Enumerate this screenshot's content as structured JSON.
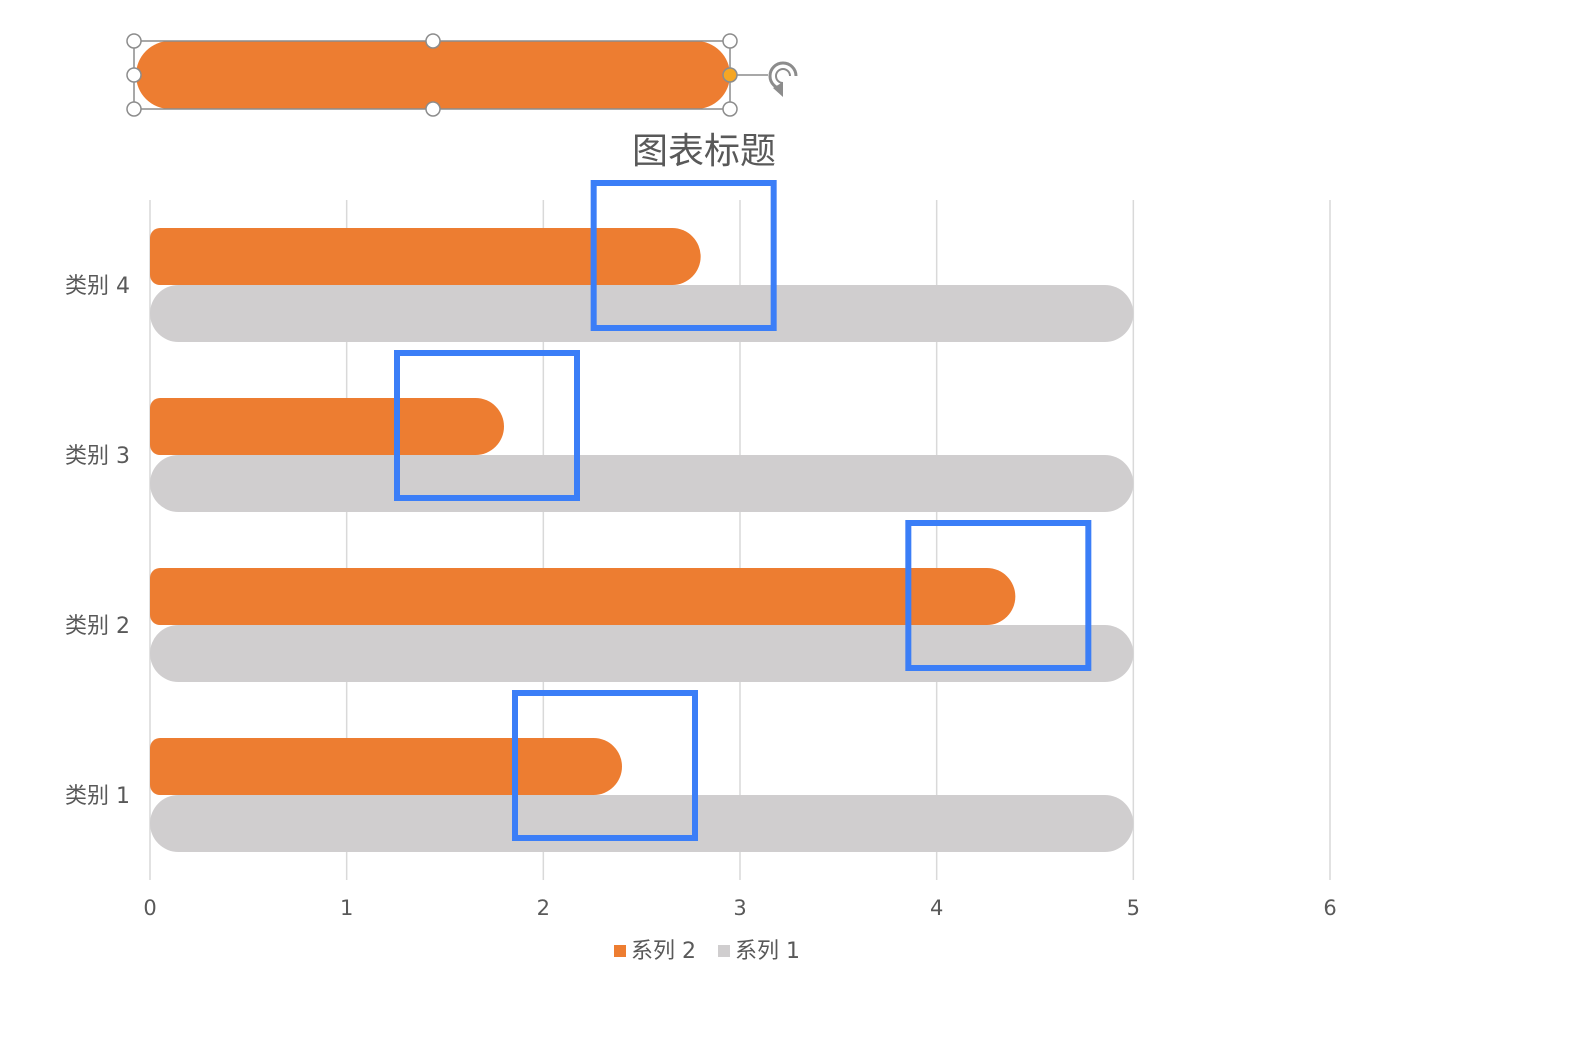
{
  "chart_data": {
    "type": "bar",
    "orientation": "horizontal",
    "title": "图表标题",
    "categories": [
      "类别 1",
      "类别 2",
      "类别 3",
      "类别 4"
    ],
    "series": [
      {
        "name": "系列 2",
        "values": [
          2.4,
          4.4,
          1.8,
          2.8
        ],
        "color": "#ED7D31"
      },
      {
        "name": "系列 1",
        "values": [
          5,
          5,
          5,
          5
        ],
        "color": "#D0CECF"
      }
    ],
    "xlim": [
      0,
      6
    ],
    "xticks": [
      "0",
      "1",
      "2",
      "3",
      "4",
      "5",
      "6"
    ],
    "grid": true,
    "legend_position": "bottom",
    "highlight_color": "#3B7EF7",
    "gridline_color": "#D9D9D9"
  },
  "selected_shape": {
    "fill": "#ED7D31",
    "handle_color": "#FFFFFF",
    "handle_stroke": "#8C8C8C",
    "accent_handle": "#F5A623",
    "rotate_icon": "rotate-icon"
  }
}
